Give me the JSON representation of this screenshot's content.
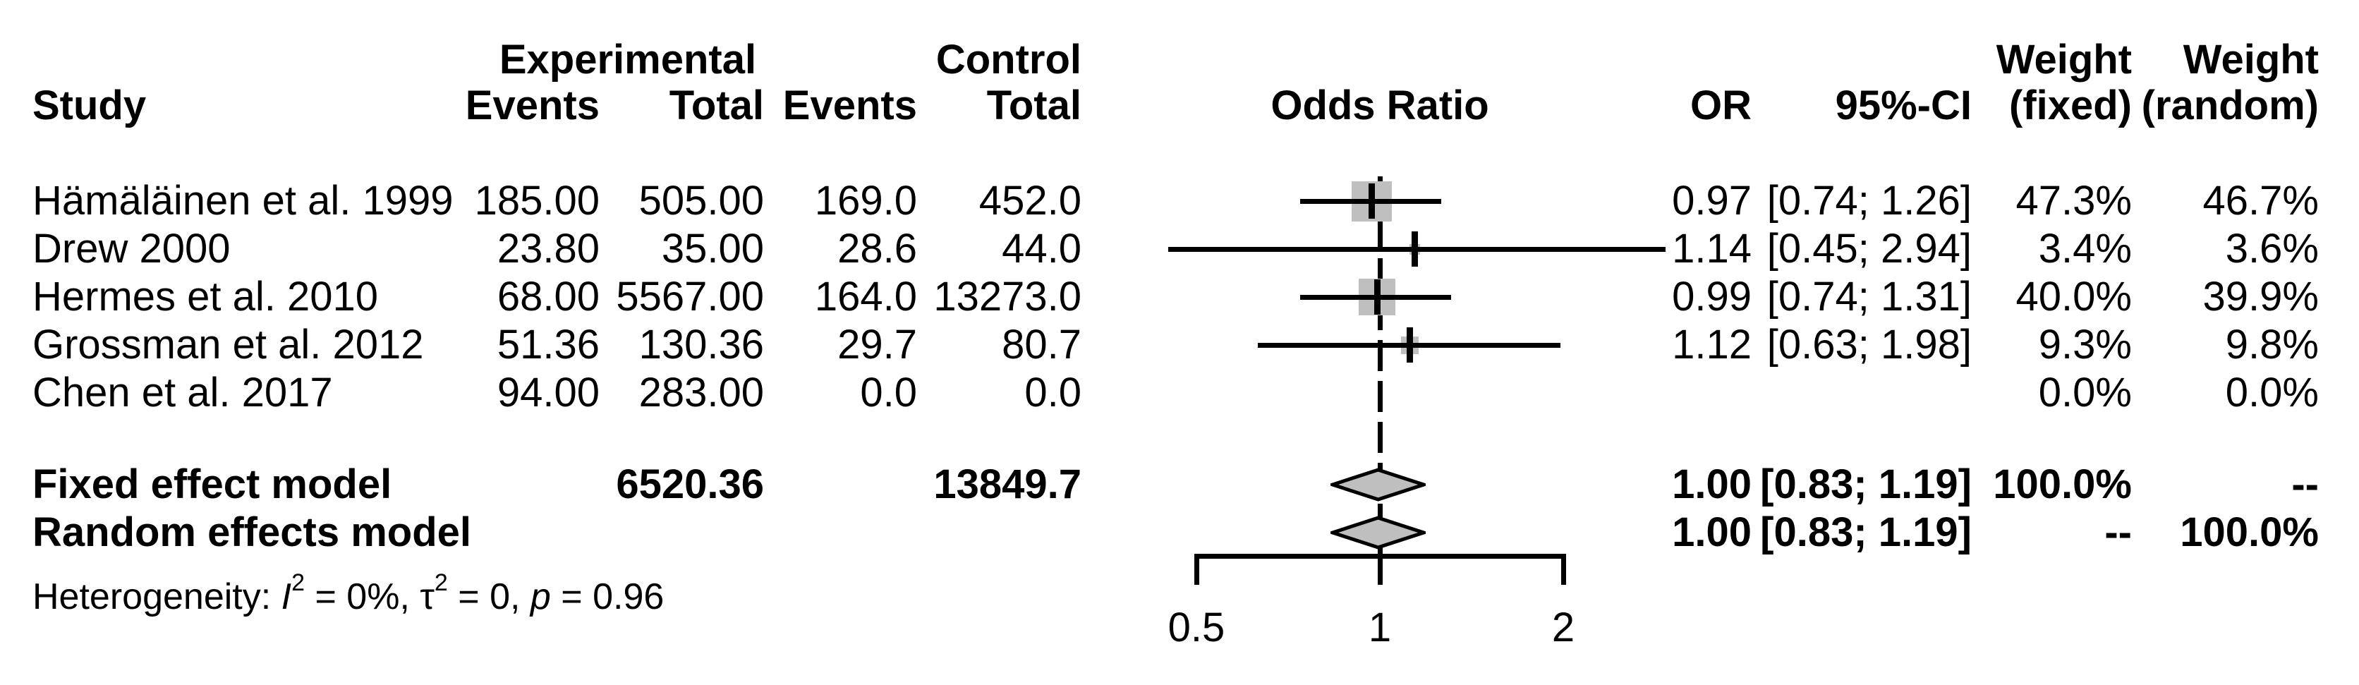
{
  "header": {
    "group_experimental": "Experimental",
    "group_control": "Control",
    "study": "Study",
    "exp_events": "Events",
    "exp_total": "Total",
    "ctrl_events": "Events",
    "ctrl_total": "Total",
    "odds_ratio": "Odds Ratio",
    "or": "OR",
    "ci": "95%-CI",
    "weight_fixed_top": "Weight",
    "weight_random_top": "Weight",
    "weight_fixed_bottom": "(fixed)",
    "weight_random_bottom": "(random)"
  },
  "rows": [
    {
      "study": "Hämäläinen et al. 1999",
      "exp_events": "185.00",
      "exp_total": "505.00",
      "ctrl_events": "169.0",
      "ctrl_total": "452.0",
      "or": "0.97",
      "ci": "[0.74; 1.26]",
      "w_fixed": "47.3%",
      "w_random": "46.7%"
    },
    {
      "study": "Drew 2000",
      "exp_events": "23.80",
      "exp_total": "35.00",
      "ctrl_events": "28.6",
      "ctrl_total": "44.0",
      "or": "1.14",
      "ci": "[0.45; 2.94]",
      "w_fixed": "3.4%",
      "w_random": "3.6%"
    },
    {
      "study": "Hermes et al. 2010",
      "exp_events": "68.00",
      "exp_total": "5567.00",
      "ctrl_events": "164.0",
      "ctrl_total": "13273.0",
      "or": "0.99",
      "ci": "[0.74; 1.31]",
      "w_fixed": "40.0%",
      "w_random": "39.9%"
    },
    {
      "study": "Grossman et al. 2012",
      "exp_events": "51.36",
      "exp_total": "130.36",
      "ctrl_events": "29.7",
      "ctrl_total": "80.7",
      "or": "1.12",
      "ci": "[0.63; 1.98]",
      "w_fixed": "9.3%",
      "w_random": "9.8%"
    },
    {
      "study": "Chen et al. 2017",
      "exp_events": "94.00",
      "exp_total": "283.00",
      "ctrl_events": "0.0",
      "ctrl_total": "0.0",
      "or": "",
      "ci": "",
      "w_fixed": "0.0%",
      "w_random": "0.0%"
    }
  ],
  "summary": {
    "fixed": {
      "label": "Fixed effect model",
      "exp_total": "6520.36",
      "ctrl_total": "13849.7",
      "or": "1.00",
      "ci": "[0.83; 1.19]",
      "w_fixed": "100.0%",
      "w_random": "--"
    },
    "random": {
      "label": "Random effects model",
      "or": "1.00",
      "ci": "[0.83; 1.19]",
      "w_fixed": "--",
      "w_random": "100.0%"
    }
  },
  "heterogeneity": {
    "prefix": "Heterogeneity: ",
    "i_symbol": "I",
    "i_sup": "2",
    "seg1": " = 0%, ",
    "tau_symbol": "τ",
    "tau_sup": "2",
    "seg2": " = 0, ",
    "p_symbol": "p",
    "seg3": " = 0.96"
  },
  "chart_data": {
    "type": "forest",
    "x_scale": "log",
    "effect_measure": "Odds Ratio",
    "axis": {
      "ticks": [
        0.5,
        1,
        2
      ],
      "tick_labels": [
        "0.5",
        "1",
        "2"
      ],
      "range": [
        0.5,
        2
      ],
      "reference_value": 1
    },
    "studies": [
      {
        "name": "Hämäläinen et al. 1999",
        "or": 0.97,
        "ci_low": 0.74,
        "ci_high": 1.26,
        "weight_fixed": 47.3,
        "weight_random": 46.7
      },
      {
        "name": "Drew 2000",
        "or": 1.14,
        "ci_low": 0.45,
        "ci_high": 2.94,
        "weight_fixed": 3.4,
        "weight_random": 3.6
      },
      {
        "name": "Hermes et al. 2010",
        "or": 0.99,
        "ci_low": 0.74,
        "ci_high": 1.31,
        "weight_fixed": 40.0,
        "weight_random": 39.9
      },
      {
        "name": "Grossman et al. 2012",
        "or": 1.12,
        "ci_low": 0.63,
        "ci_high": 1.98,
        "weight_fixed": 9.3,
        "weight_random": 9.8
      },
      {
        "name": "Chen et al. 2017",
        "or": null,
        "ci_low": null,
        "ci_high": null,
        "weight_fixed": 0.0,
        "weight_random": 0.0
      }
    ],
    "summaries": [
      {
        "name": "Fixed effect model",
        "or": 1.0,
        "ci_low": 0.83,
        "ci_high": 1.19
      },
      {
        "name": "Random effects model",
        "or": 1.0,
        "ci_low": 0.83,
        "ci_high": 1.19
      }
    ],
    "heterogeneity": {
      "I2": "0%",
      "tau2": "0",
      "p": "0.96"
    }
  }
}
